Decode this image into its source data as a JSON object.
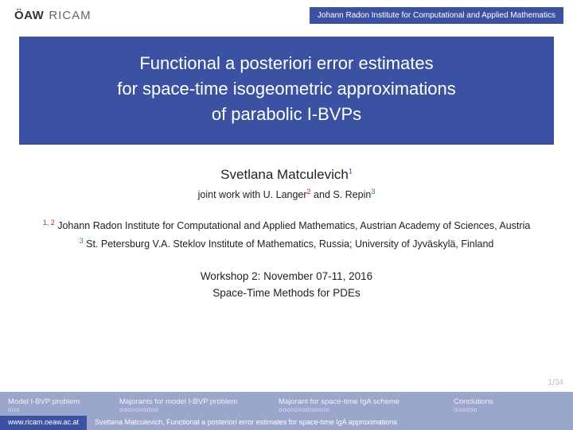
{
  "header": {
    "logo_oaw": "ÖAW",
    "logo_ricam": "RICAM",
    "institute_banner": "Johann Radon Institute for Computational and Applied Mathematics"
  },
  "title": {
    "line1": "Functional a posteriori error estimates",
    "line2": "for space-time isogeometric approximations",
    "line3": "of parabolic I-BVPs"
  },
  "author": {
    "name": "Svetlana Matculevich",
    "sup": "1",
    "joint_prefix": "joint work with ",
    "coauthor1": "U. Langer",
    "coauthor1_sup": "2",
    "joint_and": " and ",
    "coauthor2": "S. Repin",
    "coauthor2_sup": "3"
  },
  "affiliations": {
    "a12_sup1": "1,",
    "a12_sup2": "2",
    "a12_text": " Johann Radon Institute for Computational and Applied Mathematics, Austrian Academy of Sciences, Austria",
    "a3_sup": "3",
    "a3_text": " St. Petersburg V.A. Steklov Institute of Mathematics, Russia; University of Jyväskylä, Finland"
  },
  "workshop": {
    "line1": "Workshop 2: November 07-11, 2016",
    "line2": "Space-Time Methods for PDEs"
  },
  "page_counter": "1/34",
  "nav": {
    "items": [
      {
        "label": "Model I-BVP problem",
        "dots": "ooo"
      },
      {
        "label": "Majorants for model I-BVP problem",
        "dots": "oooooooooo"
      },
      {
        "label": "Majorant for space-time IgA scheme",
        "dots": "ooooooooooooo"
      },
      {
        "label": "Conclutions",
        "dots": "oooooo"
      }
    ]
  },
  "footer": {
    "url": "www.ricam.oeaw.ac.at",
    "citation": "Svetlana Matculevich, Functional a posteriori error estimates for space-time IgA approximations"
  },
  "colors": {
    "primary": "#3b52a3",
    "nav_bg": "#9aa6cc",
    "sup1": "#3b52a3",
    "sup2": "#c02020",
    "sup3": "#1a8a3a",
    "page_bg": "#ffffff",
    "text": "#222222"
  }
}
